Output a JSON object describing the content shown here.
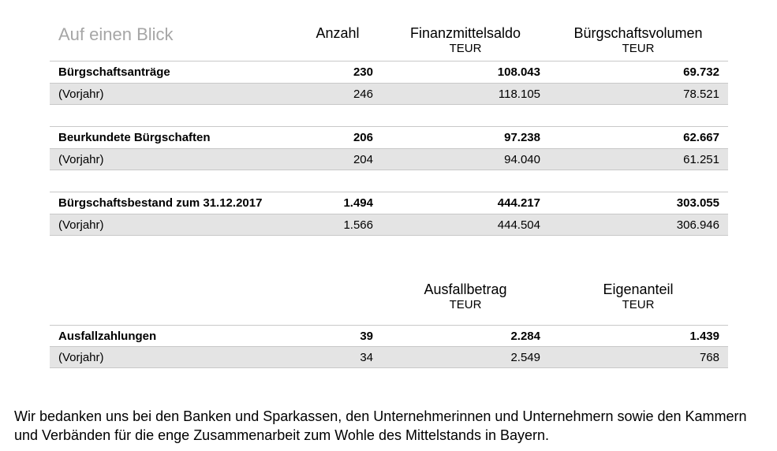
{
  "title": "Auf einen Blick",
  "headers": {
    "count": "Anzahl",
    "finance": "Finanzmittelsaldo",
    "finance_unit": "TEUR",
    "volume": "Bürgschaftsvolumen",
    "volume_unit": "TEUR"
  },
  "groups": [
    {
      "main": {
        "label": "Bürgschaftsanträge",
        "count": "230",
        "finance": "108.043",
        "volume": "69.732"
      },
      "prev": {
        "label": "(Vorjahr)",
        "count": "246",
        "finance": "118.105",
        "volume": "78.521"
      }
    },
    {
      "main": {
        "label": "Beurkundete Bürgschaften",
        "count": "206",
        "finance": "97.238",
        "volume": "62.667"
      },
      "prev": {
        "label": "(Vorjahr)",
        "count": "204",
        "finance": "94.040",
        "volume": "61.251"
      }
    },
    {
      "main": {
        "label": "Bürgschaftsbestand zum 31.12.2017",
        "count": "1.494",
        "finance": "444.217",
        "volume": "303.055"
      },
      "prev": {
        "label": "(Vorjahr)",
        "count": "1.566",
        "finance": "444.504",
        "volume": "306.946"
      }
    }
  ],
  "defaults": {
    "headers": {
      "amount": "Ausfallbetrag",
      "amount_unit": "TEUR",
      "own": "Eigenanteil",
      "own_unit": "TEUR"
    },
    "main": {
      "label": "Ausfallzahlungen",
      "count": "39",
      "amount": "2.284",
      "own": "1.439"
    },
    "prev": {
      "label": "(Vorjahr)",
      "count": "34",
      "amount": "2.549",
      "own": "768"
    }
  },
  "footer": "Wir bedanken uns bei den Banken und Sparkassen, den Unternehmerinnen und Unternehmern sowie den Kammern und Verbänden für die enge Zusammenarbeit zum Wohle des Mittelstands in Bayern."
}
